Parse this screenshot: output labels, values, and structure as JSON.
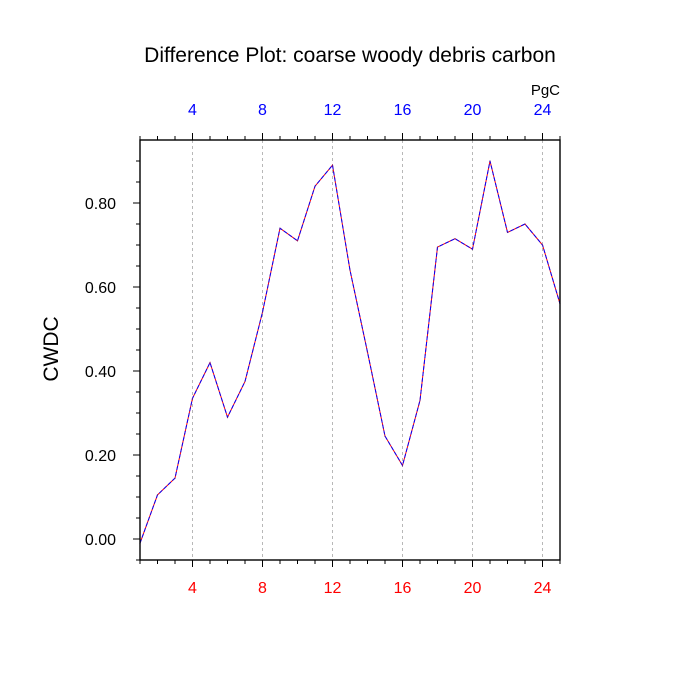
{
  "chart_data": {
    "type": "line",
    "title": "Difference Plot: coarse woody debris carbon",
    "units": "PgC",
    "ylabel": "CWDC",
    "xlabel": "",
    "xlim": [
      1,
      25
    ],
    "ylim": [
      -0.05,
      0.95
    ],
    "x_ticks_bottom": [
      4,
      8,
      12,
      16,
      20,
      24
    ],
    "x_ticks_top": [
      4,
      8,
      12,
      16,
      20,
      24
    ],
    "y_ticks": [
      0.0,
      0.2,
      0.4,
      0.6,
      0.8
    ],
    "y_tick_labels": [
      "0.00",
      "0.20",
      "0.40",
      "0.60",
      "0.80"
    ],
    "grid": "vertical dashed at major x ticks",
    "colors": {
      "line_a": "#ff0000",
      "line_b": "#0000ff",
      "bottom_ticks": "#ff0000",
      "top_ticks": "#0000ff"
    },
    "series": [
      {
        "x": [
          1,
          2,
          3,
          4,
          5,
          6,
          7,
          8,
          9,
          10,
          11,
          12,
          13,
          14,
          15,
          16,
          17,
          18,
          19,
          20,
          21,
          22,
          23,
          24,
          25
        ],
        "values": [
          -0.01,
          0.105,
          0.145,
          0.335,
          0.42,
          0.29,
          0.375,
          0.54,
          0.74,
          0.71,
          0.84,
          0.89,
          0.64,
          0.445,
          0.245,
          0.175,
          0.33,
          0.695,
          0.715,
          0.69,
          0.9,
          0.73,
          0.75,
          0.7,
          0.56
        ]
      }
    ]
  }
}
